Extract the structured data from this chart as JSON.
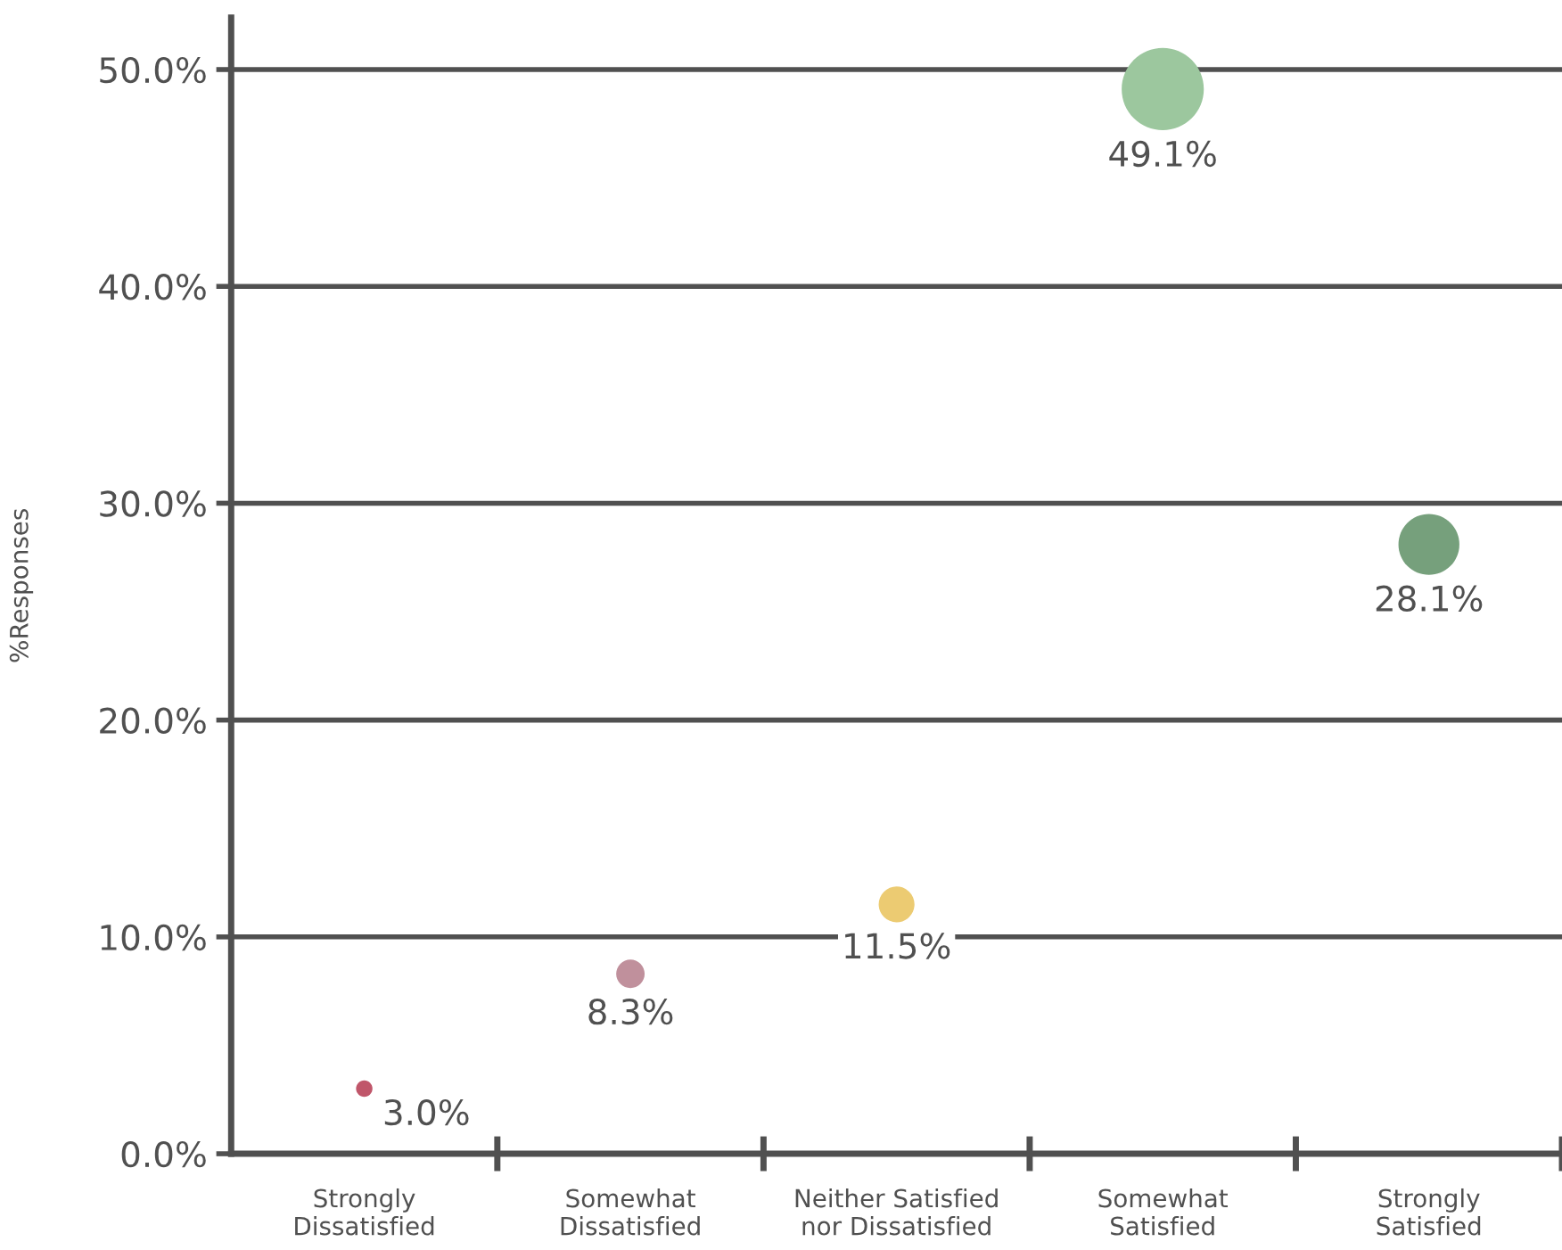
{
  "chart_data": {
    "type": "bubble",
    "categories": [
      "Strongly\nDissatisfied",
      "Somewhat\nDissatisfied",
      "Neither Satisfied\nnor Dissatisfied",
      "Somewhat\nSatisfied",
      "Strongly\nSatisfied"
    ],
    "values": [
      3.0,
      8.3,
      11.5,
      49.1,
      28.1
    ],
    "sizes": [
      0.04,
      0.12,
      0.19,
      1,
      0.55
    ],
    "colors": [
      "#c0566a",
      "#c0909c",
      "#eccb72",
      "#9cc79e",
      "#76a07c"
    ],
    "value_labels": [
      "3.0%",
      "8.3%",
      "11.5%",
      "49.1%",
      "28.1%"
    ],
    "ylabel": "%Responses",
    "ylim": [
      0,
      52.4
    ],
    "yticks": [
      {
        "value": 0,
        "label": "0.0%"
      },
      {
        "value": 10,
        "label": "10.0%"
      },
      {
        "value": 20,
        "label": "20.0%"
      },
      {
        "value": 30,
        "label": "30.0%"
      },
      {
        "value": 40,
        "label": "40.0%"
      },
      {
        "value": 50,
        "label": "50.0%"
      }
    ],
    "grid": "y",
    "legend": false
  }
}
